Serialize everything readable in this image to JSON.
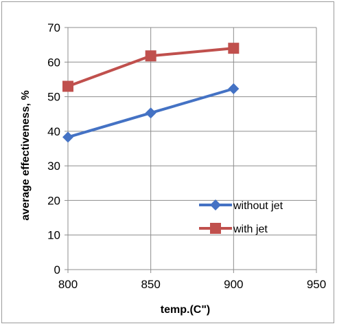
{
  "chart_data": {
    "type": "line",
    "xlabel": "temp.(C\")",
    "ylabel": "average effectiveness, %",
    "xlim": [
      800,
      950
    ],
    "ylim": [
      0,
      70
    ],
    "xticks": [
      800,
      850,
      900,
      950
    ],
    "yticks": [
      0,
      10,
      20,
      30,
      40,
      50,
      60,
      70
    ],
    "grid": "horizontal and vertical",
    "legend_position": "bottom-right",
    "series": [
      {
        "name": "without jet",
        "marker": "diamond",
        "color": "#4472C4",
        "x": [
          800,
          850,
          900
        ],
        "y": [
          38.3,
          45.3,
          52.3
        ]
      },
      {
        "name": "with jet",
        "marker": "square",
        "color": "#C0504D",
        "x": [
          800,
          850,
          900
        ],
        "y": [
          53,
          61.8,
          64
        ]
      }
    ]
  }
}
